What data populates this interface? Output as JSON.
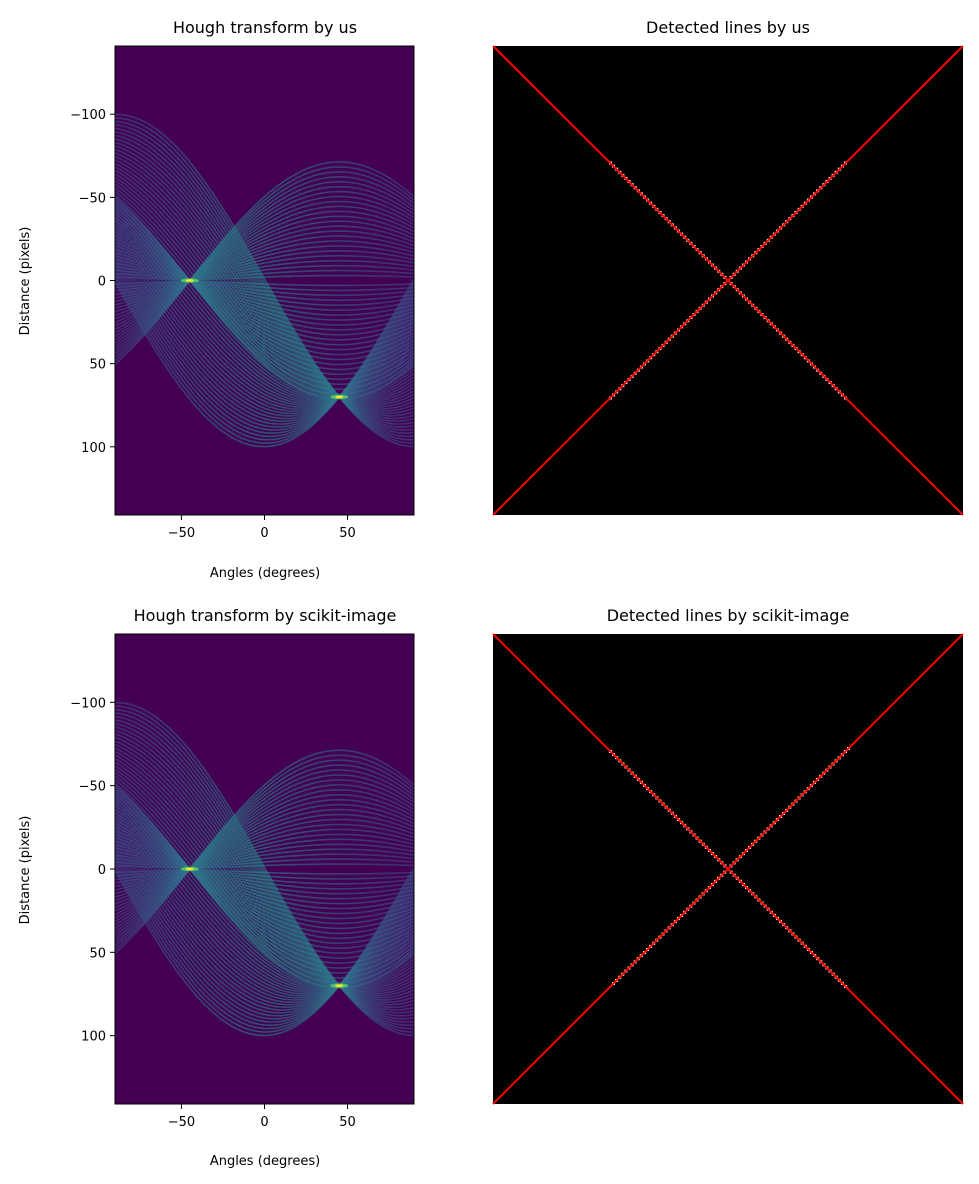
{
  "chart_data": [
    {
      "type": "heatmap",
      "title": "Hough transform by us",
      "xlabel": "Angles (degrees)",
      "ylabel": "Distance (pixels)",
      "xlim": [
        -90,
        90
      ],
      "ylim": [
        141,
        -141
      ],
      "xticks": [
        -50,
        0,
        50
      ],
      "xtick_labels": [
        "−50",
        "0",
        "50"
      ],
      "yticks": [
        -100,
        -50,
        0,
        50,
        100
      ],
      "ytick_labels": [
        "−100",
        "−50",
        "0",
        "50",
        "100"
      ],
      "colormap": "viridis",
      "peaks": [
        {
          "angle": -45,
          "distance": 0
        },
        {
          "angle": 45,
          "distance": 70
        }
      ]
    },
    {
      "type": "image",
      "title": "Detected lines by us",
      "background": "#000000",
      "pixel_color": "#ffffff",
      "line_color": "#ff0000",
      "lines": [
        {
          "angle": -45,
          "distance": 0
        },
        {
          "angle": 45,
          "distance": 70
        }
      ]
    },
    {
      "type": "heatmap",
      "title": "Hough transform by scikit-image",
      "xlabel": "Angles (degrees)",
      "ylabel": "Distance (pixels)",
      "xlim": [
        -90,
        90
      ],
      "ylim": [
        141,
        -141
      ],
      "xticks": [
        -50,
        0,
        50
      ],
      "xtick_labels": [
        "−50",
        "0",
        "50"
      ],
      "yticks": [
        -100,
        -50,
        0,
        50,
        100
      ],
      "ytick_labels": [
        "−100",
        "−50",
        "0",
        "50",
        "100"
      ],
      "colormap": "viridis",
      "peaks": [
        {
          "angle": -45,
          "distance": 0
        },
        {
          "angle": 45,
          "distance": 70
        }
      ]
    },
    {
      "type": "image",
      "title": "Detected lines by scikit-image",
      "background": "#000000",
      "pixel_color": "#ffffff",
      "line_color": "#ff0000",
      "lines": [
        {
          "angle": -45,
          "distance": 0
        },
        {
          "angle": 45,
          "distance": 70
        }
      ]
    }
  ],
  "colors": {
    "heatmap_background": "#440154",
    "band_low": "#3b528b",
    "band_mid": "#21918c",
    "band_high": "#5ec962",
    "peak": "#fde725",
    "detected_line": "#ff0000"
  }
}
